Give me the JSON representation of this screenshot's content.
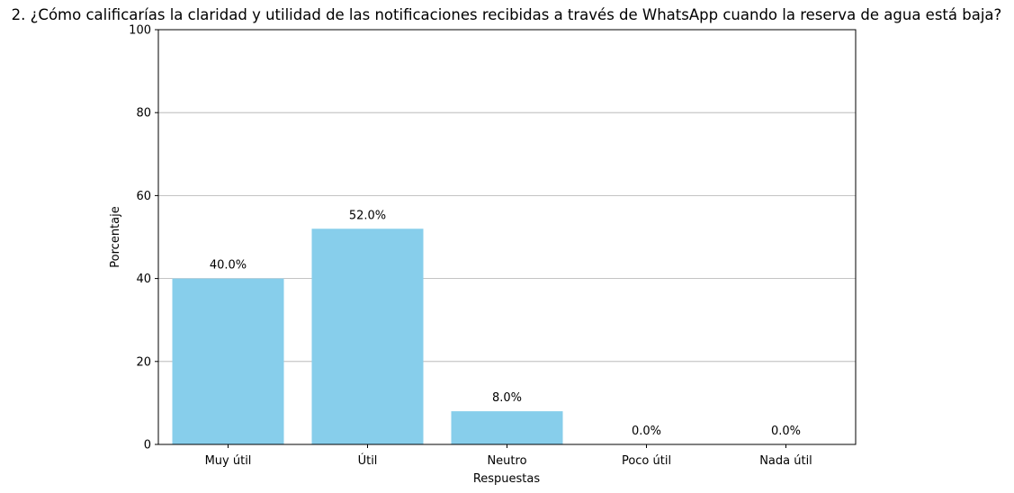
{
  "chart_data": {
    "type": "bar",
    "title": "2. ¿Cómo calificarías la claridad y utilidad de las notificaciones recibidas a través de WhatsApp cuando la reserva de agua está baja?",
    "xlabel": "Respuestas",
    "ylabel": "Porcentaje",
    "categories": [
      "Muy útil",
      "Útil",
      "Neutro",
      "Poco útil",
      "Nada útil"
    ],
    "values": [
      40.0,
      52.0,
      8.0,
      0.0,
      0.0
    ],
    "data_labels": [
      "40.0%",
      "52.0%",
      "8.0%",
      "0.0%",
      "0.0%"
    ],
    "ylim": [
      0,
      100
    ],
    "yticks": [
      0,
      20,
      40,
      60,
      80,
      100
    ],
    "ytick_labels": [
      "0",
      "20",
      "40",
      "60",
      "80",
      "100"
    ],
    "grid": "y-axis horizontal",
    "legend": "none",
    "colors": {
      "bar": "#87ceeb",
      "grid": "#b0b0b0",
      "axis": "#000000"
    }
  }
}
